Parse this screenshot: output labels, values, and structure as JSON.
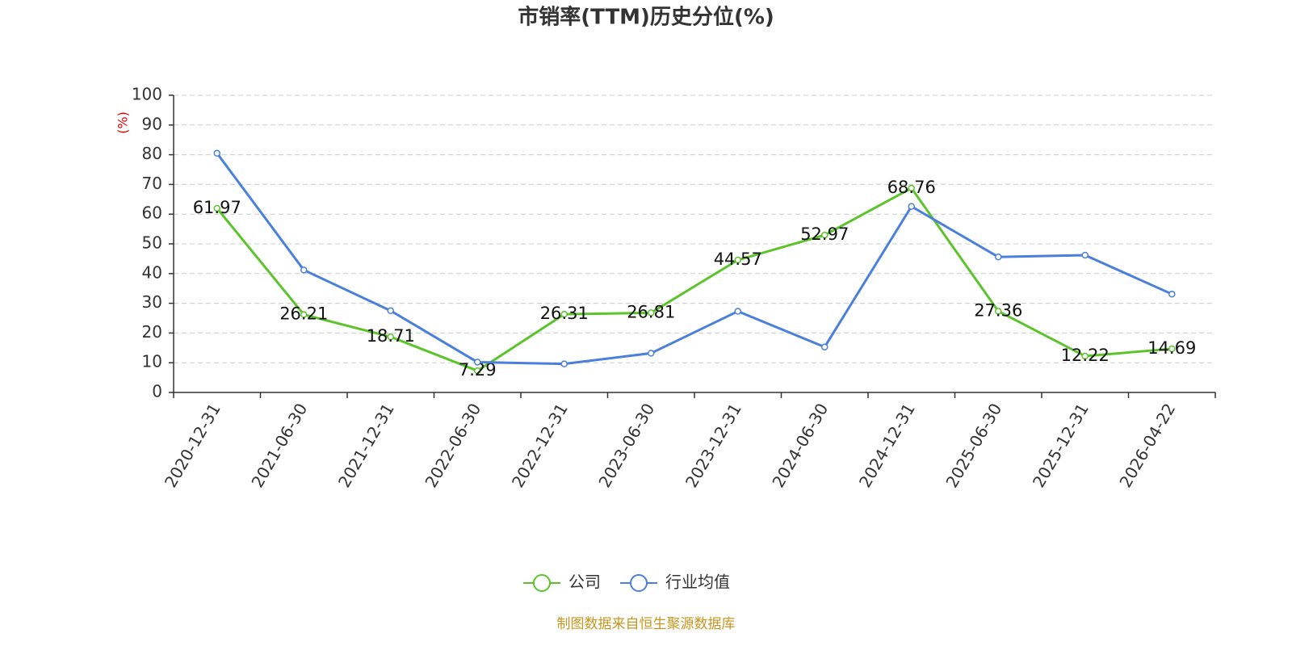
{
  "chart_data": {
    "type": "line",
    "title": "市销率(TTM)历史分位(%)",
    "y_label": "(%)",
    "categories": [
      "2020-12-31",
      "2021-06-30",
      "2021-12-31",
      "2022-06-30",
      "2022-12-31",
      "2023-06-30",
      "2023-12-31",
      "2024-06-30",
      "2024-12-31",
      "2025-06-30",
      "2025-12-31",
      "2026-04-22"
    ],
    "series": [
      {
        "name": "公司",
        "color": "#5cc42b",
        "values": [
          61.97,
          26.21,
          18.71,
          7.29,
          26.31,
          26.81,
          44.57,
          52.97,
          68.76,
          27.36,
          12.22,
          14.69
        ],
        "show_labels": true
      },
      {
        "name": "行业均值",
        "color": "#4a7fdc",
        "values": [
          80.5,
          41.2,
          27.5,
          10.2,
          9.6,
          13.2,
          27.3,
          15.3,
          62.6,
          45.6,
          46.2,
          33.1
        ],
        "show_labels": false
      }
    ],
    "ylim": [
      0,
      100
    ],
    "yticks": [
      0,
      10,
      20,
      30,
      40,
      50,
      60,
      70,
      80,
      90,
      100
    ],
    "grid": true,
    "legend": "bottom",
    "source": "制图数据来自恒生聚源数据库"
  }
}
